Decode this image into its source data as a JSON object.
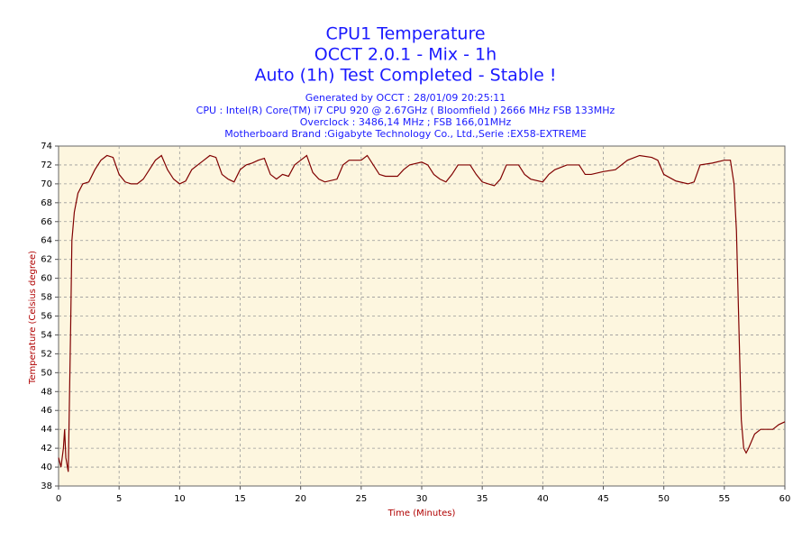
{
  "chart_data": {
    "type": "line",
    "title": "CPU1 Temperature",
    "subtitles": [
      "OCCT 2.0.1 - Mix - 1h",
      "Auto (1h) Test Completed - Stable !"
    ],
    "info_lines": [
      "Generated by OCCT : 28/01/09 20:25:11",
      "CPU : Intel(R) Core(TM) i7 CPU 920 @ 2.67GHz ( Bloomfield ) 2666 MHz FSB 133MHz",
      "Overclock : 3486,14 MHz ; FSB 166,01MHz",
      "Motherboard Brand :Gigabyte Technology Co., Ltd.,Serie :EX58-EXTREME"
    ],
    "x_label": "Time (Minutes)",
    "y_label": "Temperature (Celsius degree)",
    "color": "#800000",
    "grid": true,
    "xlim": [
      0,
      60
    ],
    "ylim": [
      38,
      74
    ],
    "xticks": [
      0,
      5,
      10,
      15,
      20,
      25,
      30,
      35,
      40,
      45,
      50,
      55,
      60
    ],
    "yticks": [
      38,
      40,
      42,
      44,
      46,
      48,
      50,
      52,
      54,
      56,
      58,
      60,
      62,
      64,
      66,
      68,
      70,
      72,
      74
    ],
    "x": [
      0,
      0.2,
      0.4,
      0.5,
      0.6,
      0.8,
      1.0,
      1.1,
      1.3,
      1.6,
      2,
      2.5,
      3,
      3.5,
      4,
      4.5,
      5,
      5.5,
      6,
      6.5,
      7,
      7.5,
      8,
      8.5,
      9,
      9.5,
      10,
      10.5,
      11,
      12,
      12.5,
      13,
      13.5,
      14,
      14.5,
      15,
      15.5,
      16,
      16.5,
      17,
      17.5,
      18,
      18.5,
      19,
      19.5,
      20,
      20.5,
      21,
      21.5,
      22,
      23,
      23.5,
      24,
      25,
      25.5,
      26,
      26.5,
      27,
      28,
      28.5,
      29,
      30,
      30.5,
      31,
      31.5,
      32,
      32.5,
      33,
      34,
      34.5,
      35,
      35.5,
      36,
      36.5,
      37,
      38,
      38.5,
      39,
      40,
      40.5,
      41,
      42,
      43,
      43.5,
      44,
      45,
      46,
      47,
      48,
      49,
      49.5,
      50,
      51,
      52,
      52.5,
      53,
      54,
      55,
      55.5,
      55.8,
      56,
      56.2,
      56.4,
      56.6,
      56.8,
      57,
      57.5,
      58,
      59,
      59.5,
      60
    ],
    "values": [
      41,
      40,
      42,
      44,
      41,
      39.5,
      55,
      64,
      67,
      69,
      70,
      70.2,
      71.5,
      72.5,
      73,
      72.8,
      71,
      70.2,
      70,
      70,
      70.5,
      71.5,
      72.5,
      73,
      71.5,
      70.5,
      70,
      70.3,
      71.5,
      72.5,
      73,
      72.8,
      71,
      70.5,
      70.2,
      71.5,
      72,
      72.2,
      72.5,
      72.7,
      71,
      70.5,
      71,
      70.8,
      72,
      72.5,
      73,
      71.2,
      70.5,
      70.2,
      70.5,
      72,
      72.5,
      72.5,
      73,
      72,
      71,
      70.8,
      70.8,
      71.5,
      72,
      72.3,
      72,
      71,
      70.5,
      70.2,
      71,
      72,
      72,
      71,
      70.2,
      70,
      69.8,
      70.5,
      72,
      72,
      71,
      70.5,
      70.2,
      71,
      71.5,
      72,
      72,
      71,
      71,
      71.3,
      71.5,
      72.5,
      73,
      72.8,
      72.5,
      71,
      70.3,
      70,
      70.2,
      72,
      72.2,
      72.5,
      72.5,
      70,
      65,
      55,
      45,
      42,
      41.5,
      42,
      43.5,
      44,
      44,
      44.5,
      44.8
    ]
  }
}
